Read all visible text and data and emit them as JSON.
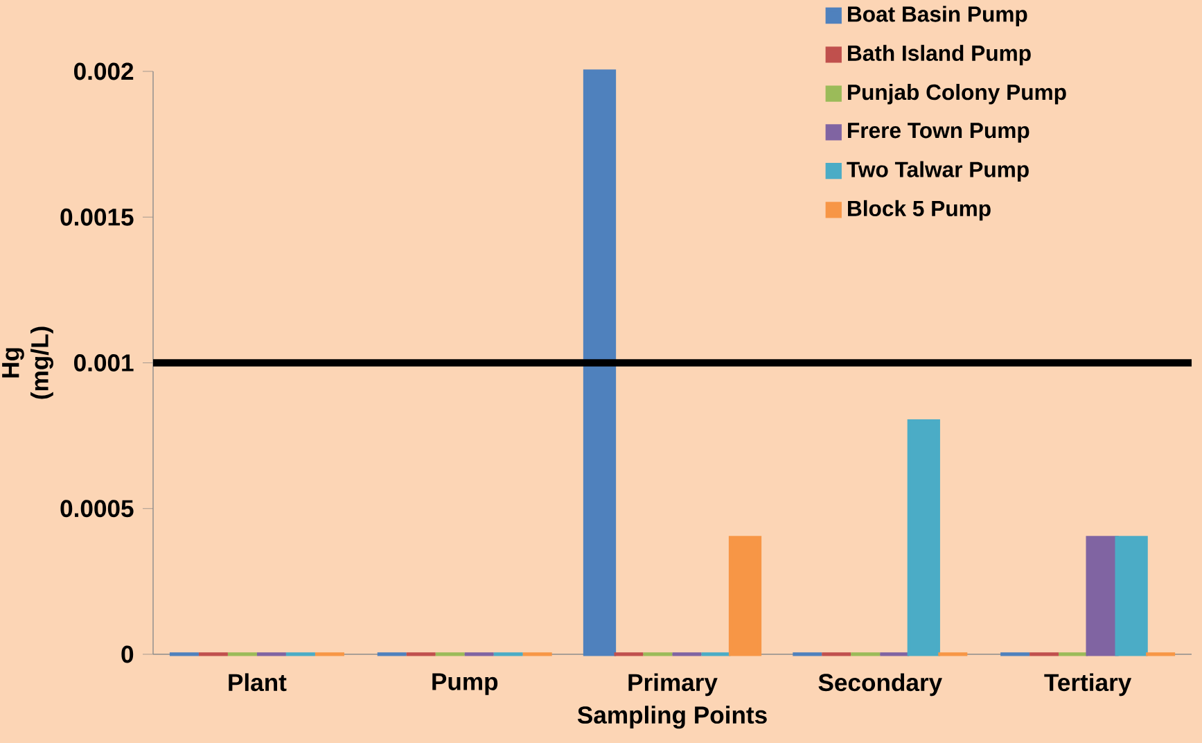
{
  "chart_data": {
    "type": "bar",
    "xlabel": "Sampling Points",
    "ylabel": "Hg (mg/L)",
    "categories": [
      "Plant",
      "Pump",
      "Primary",
      "Secondary",
      "Tertiary"
    ],
    "series": [
      {
        "name": "Boat Basin Pump",
        "color": "#4f81bd",
        "values": [
          0,
          0,
          0.002,
          0,
          0
        ]
      },
      {
        "name": "Bath Island Pump",
        "color": "#c0504d",
        "values": [
          0,
          0,
          0,
          0,
          0
        ]
      },
      {
        "name": "Punjab Colony Pump",
        "color": "#9bbb59",
        "values": [
          0,
          0,
          0,
          0,
          0
        ]
      },
      {
        "name": "Frere Town Pump",
        "color": "#8064a2",
        "values": [
          0,
          0,
          0,
          0,
          0.0004
        ]
      },
      {
        "name": "Two Talwar Pump",
        "color": "#4bacc6",
        "values": [
          0,
          0,
          0,
          0.0008,
          0.0004
        ]
      },
      {
        "name": "Block 5 Pump",
        "color": "#f79646",
        "values": [
          0,
          0,
          0.0004,
          0,
          0
        ]
      }
    ],
    "ylim": [
      0,
      0.002
    ],
    "yticks": [
      0,
      0.0005,
      0.001,
      0.0015,
      0.002
    ],
    "ref_lines": [
      {
        "axis": "y",
        "value": 0.001,
        "color": "#000000"
      }
    ],
    "legend": "top right"
  }
}
